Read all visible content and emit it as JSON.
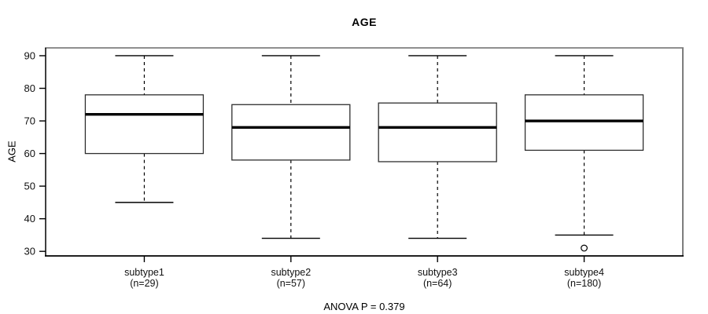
{
  "title": "AGE",
  "y_axis_title": "AGE",
  "footer_note": "ANOVA P = 0.379",
  "chart_data": {
    "type": "boxplot",
    "title": "AGE",
    "ylabel": "AGE",
    "annotation": "ANOVA P = 0.379",
    "y_ticks": [
      30,
      40,
      50,
      60,
      70,
      80,
      90
    ],
    "ylim": [
      28.6,
      92.4
    ],
    "xlim": [
      0.327,
      4.673
    ],
    "grid": false,
    "categories": [
      "subtype1",
      "subtype2",
      "subtype3",
      "subtype4"
    ],
    "category_sublabels": [
      "(n=29)",
      "(n=57)",
      "(n=64)",
      "(n=180)"
    ],
    "series": [
      {
        "name": "subtype1",
        "n": 29,
        "whisker_low": 45,
        "q1": 60,
        "median": 72,
        "q3": 78,
        "whisker_high": 90,
        "outliers": []
      },
      {
        "name": "subtype2",
        "n": 57,
        "whisker_low": 34,
        "q1": 58,
        "median": 68,
        "q3": 75,
        "whisker_high": 90,
        "outliers": []
      },
      {
        "name": "subtype3",
        "n": 64,
        "whisker_low": 34,
        "q1": 57.5,
        "median": 68,
        "q3": 75.5,
        "whisker_high": 90,
        "outliers": []
      },
      {
        "name": "subtype4",
        "n": 180,
        "whisker_low": 35,
        "q1": 61,
        "median": 70,
        "q3": 78,
        "whisker_high": 90,
        "outliers": [
          31
        ]
      }
    ],
    "colors": {
      "box_stroke": "#2f2f2f",
      "median": "#000000",
      "whisker": "#000000",
      "frame_top": "#8f8f8f",
      "frame_right": "#7d7d7d",
      "frame_dark": "#000000",
      "background": "#ffffff"
    }
  }
}
